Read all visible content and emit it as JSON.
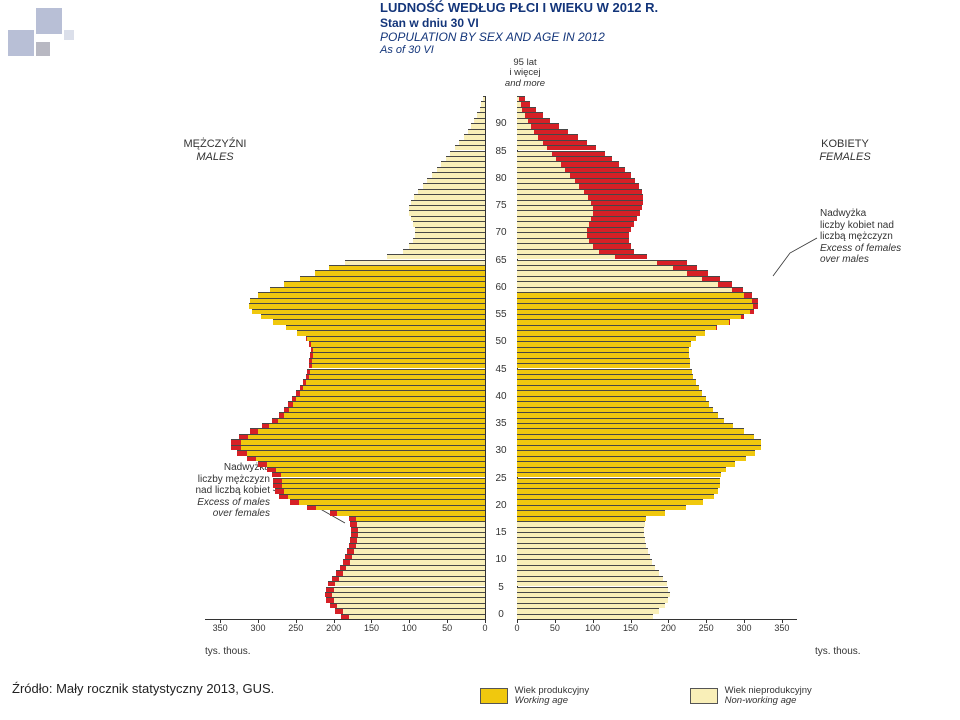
{
  "deco": {
    "color": "#b4bad4"
  },
  "title": {
    "line1": "LUDNOŚĆ WEDŁUG PŁCI I WIEKU W 2012 R.",
    "line2": "Stan w dniu 30 VI",
    "line3": "POPULATION BY SEX AND AGE IN 2012",
    "line4": "As of 30 VI",
    "color": "#13357a",
    "fontsize_bold": 13,
    "fontsize_reg": 12
  },
  "labels": {
    "males": "MĘŻCZYŹNI",
    "males_en": "MALES",
    "females": "KOBIETY",
    "females_en": "FEMALES",
    "top_age": "95 lat",
    "top_age2": "i więcej",
    "top_age3": "and more",
    "x_unit": "tys.  thous.",
    "excess_m_l1": "Nadwyżka",
    "excess_m_l2": "liczby mężczyzn",
    "excess_m_l3": "nad liczbą kobiet",
    "excess_m_l4": "Excess of males",
    "excess_m_l5": "over females",
    "excess_f_l1": "Nadwyżka",
    "excess_f_l2": "liczby kobiet nad",
    "excess_f_l3": "liczbą mężczyzn",
    "excess_f_l4": "Excess of females",
    "excess_f_l5": "over males",
    "leg_work": "Wiek produkcyjny",
    "leg_work_en": "Working age",
    "leg_nonwork": "Wiek nieprodukcyjny",
    "leg_nonwork_en": "Non-working age"
  },
  "source": "Źródło: Mały rocznik statystyczny 2013, GUS.",
  "chart": {
    "type": "population-pyramid",
    "age_ticks": [
      0,
      5,
      10,
      15,
      20,
      25,
      30,
      35,
      40,
      45,
      50,
      55,
      60,
      65,
      70,
      75,
      80,
      85,
      90
    ],
    "x_ticks": [
      0,
      50,
      100,
      150,
      200,
      250,
      300,
      350
    ],
    "x_max": 370,
    "center_gap": 32,
    "half_width": 280,
    "row_h": 5.45,
    "top_pad": 18,
    "colors": {
      "working": "#f0c80e",
      "nonworking": "#f9efb8",
      "excess": "#d62026",
      "bar_border": "#474747",
      "axis": "#333333",
      "bg": "#ffffff"
    },
    "male_working_range": [
      18,
      64
    ],
    "female_working_range": [
      18,
      59
    ],
    "males": [
      190,
      198,
      205,
      210,
      212,
      210,
      207,
      202,
      197,
      192,
      188,
      185,
      182,
      180,
      178,
      177,
      177,
      178,
      180,
      205,
      235,
      258,
      272,
      278,
      280,
      280,
      282,
      288,
      300,
      315,
      328,
      335,
      335,
      325,
      310,
      295,
      282,
      272,
      265,
      260,
      255,
      250,
      245,
      240,
      237,
      235,
      233,
      232,
      231,
      230,
      232,
      237,
      248,
      263,
      280,
      296,
      308,
      312,
      310,
      300,
      284,
      265,
      245,
      225,
      206,
      185,
      130,
      108,
      100,
      95,
      93,
      93,
      95,
      98,
      100,
      100,
      98,
      94,
      88,
      82,
      76,
      70,
      64,
      58,
      52,
      46,
      40,
      34,
      28,
      23,
      18,
      14,
      10,
      7,
      5,
      3
    ],
    "females": [
      180,
      188,
      195,
      200,
      202,
      200,
      198,
      193,
      188,
      183,
      179,
      176,
      173,
      171,
      169,
      168,
      168,
      169,
      171,
      195,
      223,
      246,
      260,
      266,
      268,
      268,
      270,
      276,
      288,
      302,
      315,
      322,
      322,
      313,
      300,
      286,
      274,
      265,
      259,
      254,
      250,
      245,
      240,
      236,
      233,
      231,
      229,
      228,
      227,
      227,
      230,
      236,
      248,
      264,
      282,
      300,
      313,
      318,
      318,
      310,
      298,
      284,
      268,
      252,
      238,
      225,
      172,
      155,
      150,
      148,
      148,
      150,
      154,
      158,
      162,
      165,
      167,
      167,
      165,
      161,
      156,
      150,
      143,
      135,
      126,
      116,
      105,
      93,
      80,
      67,
      55,
      44,
      34,
      25,
      17,
      10
    ]
  }
}
